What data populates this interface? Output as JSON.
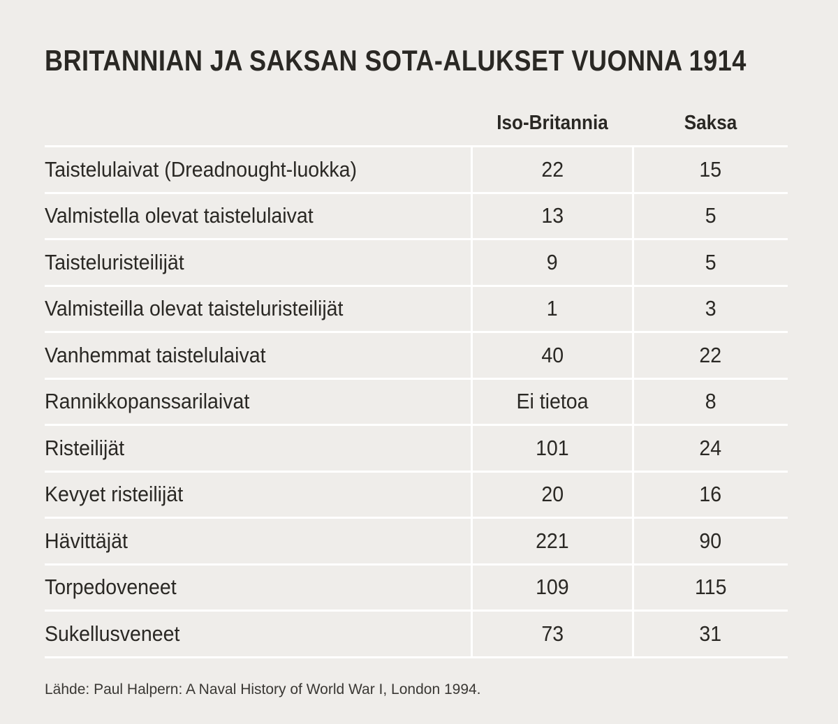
{
  "title": "BRITANNIAN JA SAKSAN SOTA-ALUKSET VUONNA 1914",
  "chart_data": {
    "type": "table",
    "title": "BRITANNIAN JA SAKSAN SOTA-ALUKSET VUONNA 1914",
    "columns": [
      "Iso-Britannia",
      "Saksa"
    ],
    "rows": [
      {
        "label": "Taistelulaivat (Dreadnought-luokka)",
        "gb": "22",
        "de": "15"
      },
      {
        "label": "Valmistella olevat taistelulaivat",
        "gb": "13",
        "de": "5"
      },
      {
        "label": "Taisteluristeilijät",
        "gb": "9",
        "de": "5"
      },
      {
        "label": "Valmisteilla olevat taisteluristeilijät",
        "gb": "1",
        "de": "3"
      },
      {
        "label": "Vanhemmat taistelulaivat",
        "gb": "40",
        "de": "22"
      },
      {
        "label": "Rannikkopanssarilaivat",
        "gb": "Ei tietoa",
        "de": "8"
      },
      {
        "label": "Risteilijät",
        "gb": "101",
        "de": "24"
      },
      {
        "label": "Kevyet risteilijät",
        "gb": "20",
        "de": "16"
      },
      {
        "label": "Hävittäjät",
        "gb": "221",
        "de": "90"
      },
      {
        "label": "Torpedoveneet",
        "gb": "109",
        "de": "115"
      },
      {
        "label": "Sukellusveneet",
        "gb": "73",
        "de": "31"
      }
    ],
    "source": "Lähde: Paul Halpern: A Naval History of World War I, London 1994."
  },
  "colors": {
    "background": "#efedea",
    "text": "#2a2824",
    "rules": "#ffffff"
  }
}
